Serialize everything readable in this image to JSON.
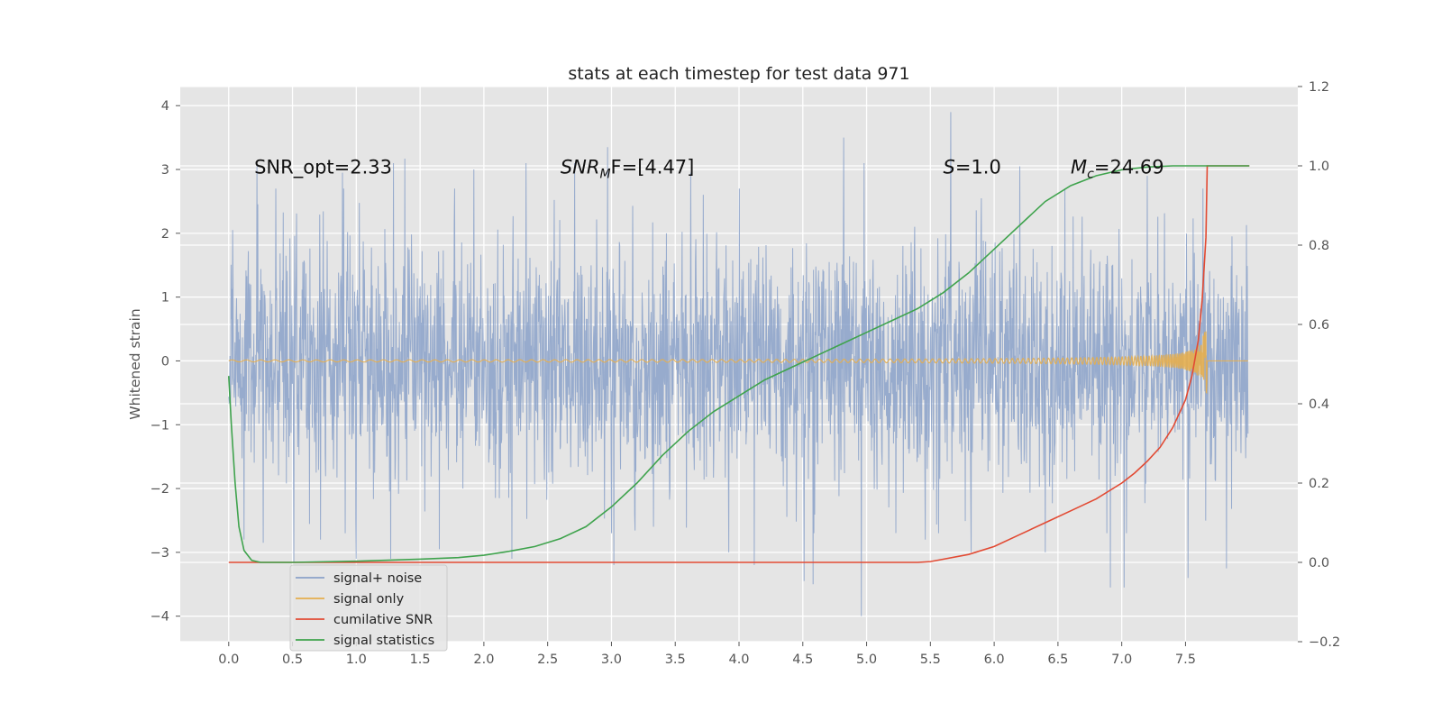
{
  "chart_data": {
    "type": "line",
    "title": "stats at each timestep for test data 971",
    "xlabel": "",
    "ylabel": "Whitened strain",
    "xlim": [
      -0.38,
      8.38
    ],
    "ylim": [
      -4.4,
      4.3
    ],
    "y2lim": [
      -0.2,
      1.2
    ],
    "xticks": [
      0.0,
      0.5,
      1.0,
      1.5,
      2.0,
      2.5,
      3.0,
      3.5,
      4.0,
      4.5,
      5.0,
      5.5,
      6.0,
      6.5,
      7.0,
      7.5
    ],
    "xtick_labels": [
      "0.0",
      "0.5",
      "1.0",
      "1.5",
      "2.0",
      "2.5",
      "3.0",
      "3.5",
      "4.0",
      "4.5",
      "5.0",
      "5.5",
      "6.0",
      "6.5",
      "7.0",
      "7.5"
    ],
    "yticks": [
      4,
      3,
      2,
      1,
      0,
      -1,
      -2,
      -3,
      -4
    ],
    "ytick_labels": [
      "4",
      "3",
      "2",
      "1",
      "0",
      "−1",
      "−2",
      "−3",
      "−4"
    ],
    "y2ticks": [
      1.2,
      1.0,
      0.8,
      0.6,
      0.4,
      0.2,
      0.0,
      -0.2
    ],
    "y2tick_labels": [
      "1.2",
      "1.0",
      "0.8",
      "0.6",
      "0.4",
      "0.2",
      "0.0",
      "−0.2"
    ],
    "grid": true,
    "legend_position": "lower-left",
    "annotations": [
      {
        "text": "SNR_opt=2.33",
        "x": 0.2,
        "y": 3.05
      },
      {
        "text": "SNR",
        "sub": "M",
        "text2": "F=[4.47]",
        "italic": true,
        "x": 2.6,
        "y": 3.05
      },
      {
        "text": "S",
        "text2": "=1.0",
        "italic": true,
        "x": 5.6,
        "y": 3.05
      },
      {
        "text": "M",
        "sub": "c",
        "text2": "=24.69",
        "italic": true,
        "x": 6.6,
        "y": 3.05
      }
    ],
    "series": [
      {
        "name": "signal+ noise",
        "axis": "left",
        "color": "#8aa1c9",
        "description": "noise trace, approx. gaussian, std ~1",
        "x_range": [
          0.0,
          7.99
        ],
        "band_y": [
          -1.8,
          1.8
        ],
        "spikes": [
          {
            "x": 0.03,
            "y": 2.05
          },
          {
            "x": 0.12,
            "y": -2.8
          },
          {
            "x": 0.22,
            "y": 3.05
          },
          {
            "x": 0.27,
            "y": -2.85
          },
          {
            "x": 0.51,
            "y": -3.15
          },
          {
            "x": 0.72,
            "y": -2.8
          },
          {
            "x": 0.89,
            "y": 2.95
          },
          {
            "x": 1.0,
            "y": -3.1
          },
          {
            "x": 1.27,
            "y": -3.1
          },
          {
            "x": 1.29,
            "y": 3.1
          },
          {
            "x": 1.38,
            "y": 3.17
          },
          {
            "x": 1.65,
            "y": -2.95
          },
          {
            "x": 1.92,
            "y": 3.0
          },
          {
            "x": 2.22,
            "y": -3.1
          },
          {
            "x": 2.33,
            "y": 3.1
          },
          {
            "x": 2.71,
            "y": 3.1
          },
          {
            "x": 2.97,
            "y": 3.35
          },
          {
            "x": 3.02,
            "y": -3.2
          },
          {
            "x": 3.33,
            "y": -2.6
          },
          {
            "x": 3.62,
            "y": 2.95
          },
          {
            "x": 3.92,
            "y": -3.0
          },
          {
            "x": 4.12,
            "y": -3.2
          },
          {
            "x": 4.51,
            "y": -3.45
          },
          {
            "x": 4.58,
            "y": -3.5
          },
          {
            "x": 4.82,
            "y": 3.5
          },
          {
            "x": 4.96,
            "y": -4.0
          },
          {
            "x": 4.98,
            "y": 3.1
          },
          {
            "x": 5.46,
            "y": -2.8
          },
          {
            "x": 5.66,
            "y": 3.9
          },
          {
            "x": 5.82,
            "y": -3.0
          },
          {
            "x": 6.2,
            "y": 3.05
          },
          {
            "x": 6.4,
            "y": -3.0
          },
          {
            "x": 6.91,
            "y": -3.55
          },
          {
            "x": 7.02,
            "y": -3.55
          },
          {
            "x": 7.2,
            "y": 2.9
          },
          {
            "x": 7.52,
            "y": -3.4
          },
          {
            "x": 7.82,
            "y": -3.25
          }
        ]
      },
      {
        "name": "signal only",
        "axis": "left",
        "color": "#e5ae4e",
        "description": "chirp, near zero until ~6.5 then growing oscillation ending ~7.67",
        "x_range": [
          0.0,
          7.99
        ],
        "peak_amplitude": 0.52,
        "merger_time": 7.67
      },
      {
        "name": "cumilative SNR",
        "axis": "right",
        "color": "#e24a33",
        "x": [
          0.0,
          1.0,
          2.0,
          3.0,
          4.0,
          5.0,
          5.4,
          5.5,
          5.6,
          5.8,
          6.0,
          6.2,
          6.4,
          6.6,
          6.8,
          7.0,
          7.1,
          7.2,
          7.3,
          7.4,
          7.5,
          7.55,
          7.6,
          7.63,
          7.66,
          7.67,
          7.7,
          8.0
        ],
        "values": [
          0.0,
          0.0,
          0.0,
          0.0,
          0.0,
          0.0,
          0.0,
          0.002,
          0.008,
          0.02,
          0.04,
          0.07,
          0.1,
          0.13,
          0.16,
          0.2,
          0.225,
          0.255,
          0.29,
          0.34,
          0.41,
          0.47,
          0.56,
          0.66,
          0.82,
          1.0,
          1.0,
          1.0
        ]
      },
      {
        "name": "signal statistics",
        "axis": "right",
        "color": "#3fa34d",
        "x": [
          0.0,
          0.02,
          0.05,
          0.08,
          0.12,
          0.18,
          0.25,
          0.5,
          1.0,
          1.5,
          1.8,
          2.0,
          2.2,
          2.4,
          2.6,
          2.8,
          3.0,
          3.2,
          3.4,
          3.6,
          3.8,
          4.0,
          4.2,
          4.4,
          4.6,
          4.8,
          5.0,
          5.2,
          5.4,
          5.6,
          5.8,
          6.0,
          6.2,
          6.4,
          6.6,
          6.8,
          7.0,
          7.2,
          7.4,
          7.6,
          7.8,
          8.0
        ],
        "values": [
          0.47,
          0.35,
          0.2,
          0.09,
          0.03,
          0.005,
          0.0,
          0.0,
          0.003,
          0.008,
          0.012,
          0.018,
          0.028,
          0.04,
          0.06,
          0.09,
          0.14,
          0.2,
          0.27,
          0.33,
          0.38,
          0.42,
          0.46,
          0.49,
          0.52,
          0.55,
          0.58,
          0.61,
          0.64,
          0.68,
          0.73,
          0.79,
          0.85,
          0.91,
          0.95,
          0.975,
          0.99,
          0.997,
          1.0,
          1.0,
          1.0,
          1.0
        ]
      }
    ]
  }
}
